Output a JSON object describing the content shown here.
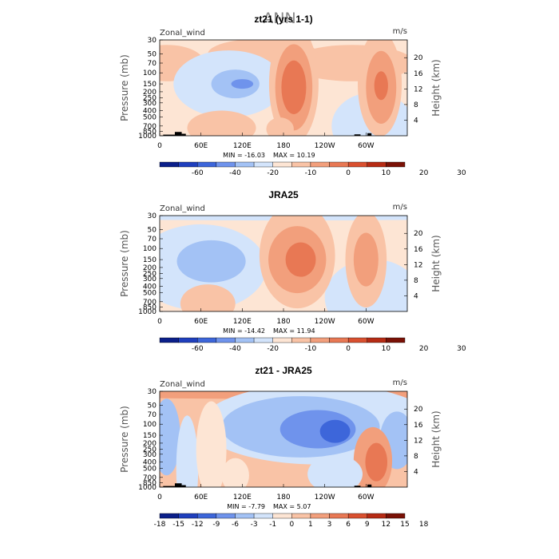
{
  "page_title": "ANN",
  "chart_data": [
    {
      "type": "heatmap",
      "title": "zt21 (yrs 1-1)",
      "left_label": "Zonal_wind",
      "units": "m/s",
      "ylabel": "Pressure (mb)",
      "y2label": "Height (km)",
      "x_ticks": [
        "0",
        "60E",
        "120E",
        "180",
        "120W",
        "60W"
      ],
      "x_tick_lon": [
        0,
        60,
        120,
        180,
        240,
        300
      ],
      "xlim": [
        0,
        360
      ],
      "y_ticks": [
        30,
        50,
        70,
        100,
        150,
        200,
        250,
        300,
        400,
        500,
        700,
        850,
        1000
      ],
      "ylim": [
        1000,
        30
      ],
      "y2_ticks": [
        4,
        8,
        12,
        16,
        20
      ],
      "min_label": "MIN = -16.03",
      "max_label": "MAX = 10.19",
      "colorbar_labels": [
        "-60",
        "-40",
        "-20",
        "-10",
        "0",
        "10",
        "20",
        "30"
      ],
      "colorbar_colors": [
        "#0b1f8a",
        "#1f3fbd",
        "#3d66da",
        "#6f93ec",
        "#a3c2f5",
        "#d3e4fb",
        "#fde5d4",
        "#f9c3a6",
        "#f29f7c",
        "#e87854",
        "#d9502f",
        "#b62b14",
        "#7a1106"
      ],
      "background_level": 6,
      "regions": [
        {
          "lon": 10,
          "p": 70,
          "rx": 55,
          "rp": 0.19,
          "level": 7
        },
        {
          "lon": 280,
          "p": 70,
          "rx": 90,
          "rp": 0.19,
          "level": 7
        },
        {
          "lon": 150,
          "p": 50,
          "rx": 80,
          "rp": 0.16,
          "level": 7
        },
        {
          "lon": 100,
          "p": 150,
          "rx": 80,
          "rp": 0.35,
          "level": 5
        },
        {
          "lon": 110,
          "p": 150,
          "rx": 35,
          "rp": 0.15,
          "level": 4
        },
        {
          "lon": 120,
          "p": 150,
          "rx": 16,
          "rp": 0.05,
          "level": 3
        },
        {
          "lon": 310,
          "p": 700,
          "rx": 60,
          "rp": 0.35,
          "level": 5
        },
        {
          "lon": 195,
          "p": 150,
          "rx": 36,
          "rp": 0.62,
          "level": 7
        },
        {
          "lon": 195,
          "p": 170,
          "rx": 27,
          "rp": 0.45,
          "level": 8
        },
        {
          "lon": 195,
          "p": 170,
          "rx": 18,
          "rp": 0.28,
          "level": 9
        },
        {
          "lon": 320,
          "p": 150,
          "rx": 32,
          "rp": 0.55,
          "level": 7
        },
        {
          "lon": 322,
          "p": 170,
          "rx": 22,
          "rp": 0.38,
          "level": 8
        },
        {
          "lon": 322,
          "p": 160,
          "rx": 10,
          "rp": 0.15,
          "level": 9
        },
        {
          "lon": 90,
          "p": 750,
          "rx": 50,
          "rp": 0.18,
          "level": 7
        },
        {
          "lon": 175,
          "p": 780,
          "rx": 20,
          "rp": 0.12,
          "level": 7
        }
      ],
      "terrain": [
        {
          "lon0": 5,
          "lon1": 22,
          "p": 960
        },
        {
          "lon0": 22,
          "lon1": 32,
          "p": 870
        },
        {
          "lon0": 32,
          "lon1": 38,
          "p": 930
        },
        {
          "lon0": 283,
          "lon1": 292,
          "p": 950
        },
        {
          "lon0": 302,
          "lon1": 308,
          "p": 910
        }
      ]
    },
    {
      "type": "heatmap",
      "title": "JRA25",
      "left_label": "Zonal_wind",
      "units": "m/s",
      "ylabel": "Pressure (mb)",
      "y2label": "Height (km)",
      "x_ticks": [
        "0",
        "60E",
        "120E",
        "180",
        "120W",
        "60W"
      ],
      "x_tick_lon": [
        0,
        60,
        120,
        180,
        240,
        300
      ],
      "xlim": [
        0,
        360
      ],
      "y_ticks": [
        30,
        50,
        70,
        100,
        150,
        200,
        250,
        300,
        400,
        500,
        700,
        850,
        1000
      ],
      "ylim": [
        1000,
        30
      ],
      "y2_ticks": [
        4,
        8,
        12,
        16,
        20
      ],
      "min_label": "MIN = -14.42",
      "max_label": "MAX = 11.94",
      "colorbar_labels": [
        "-60",
        "-40",
        "-20",
        "-10",
        "0",
        "10",
        "20",
        "30"
      ],
      "colorbar_colors": [
        "#0b1f8a",
        "#1f3fbd",
        "#3d66da",
        "#6f93ec",
        "#a3c2f5",
        "#d3e4fb",
        "#fde5d4",
        "#f9c3a6",
        "#f29f7c",
        "#e87854",
        "#d9502f",
        "#b62b14",
        "#7a1106"
      ],
      "background_level": 6,
      "regions": [
        {
          "lon": 180,
          "p": 30,
          "rx": 400,
          "rp": 0.05,
          "level": 5
        },
        {
          "lon": 60,
          "p": 200,
          "rx": 95,
          "rp": 0.45,
          "level": 5
        },
        {
          "lon": 75,
          "p": 160,
          "rx": 50,
          "rp": 0.22,
          "level": 4
        },
        {
          "lon": 310,
          "p": 600,
          "rx": 70,
          "rp": 0.4,
          "level": 5
        },
        {
          "lon": 200,
          "p": 130,
          "rx": 55,
          "rp": 0.55,
          "level": 7
        },
        {
          "lon": 200,
          "p": 150,
          "rx": 42,
          "rp": 0.35,
          "level": 8
        },
        {
          "lon": 205,
          "p": 150,
          "rx": 22,
          "rp": 0.18,
          "level": 9
        },
        {
          "lon": 300,
          "p": 150,
          "rx": 30,
          "rp": 0.5,
          "level": 7
        },
        {
          "lon": 300,
          "p": 150,
          "rx": 18,
          "rp": 0.28,
          "level": 8
        },
        {
          "lon": 70,
          "p": 750,
          "rx": 40,
          "rp": 0.2,
          "level": 7
        }
      ],
      "terrain": []
    },
    {
      "type": "heatmap",
      "title": "zt21 - JRA25",
      "left_label": "Zonal_wind",
      "units": "m/s",
      "ylabel": "Pressure (mb)",
      "y2label": "Height (km)",
      "x_ticks": [
        "0",
        "60E",
        "120E",
        "180",
        "120W",
        "60W"
      ],
      "x_tick_lon": [
        0,
        60,
        120,
        180,
        240,
        300
      ],
      "xlim": [
        0,
        360
      ],
      "y_ticks": [
        30,
        50,
        70,
        100,
        150,
        200,
        250,
        300,
        400,
        500,
        700,
        850,
        1000
      ],
      "ylim": [
        1000,
        30
      ],
      "y2_ticks": [
        4,
        8,
        12,
        16,
        20
      ],
      "min_label": "MIN = -7.79",
      "max_label": "MAX = 5.07",
      "colorbar_labels": [
        "-18",
        "-15",
        "-12",
        "-9",
        "-6",
        "-3",
        "-1",
        "0",
        "1",
        "3",
        "6",
        "9",
        "12",
        "15",
        "18"
      ],
      "colorbar_colors": [
        "#0b1f8a",
        "#1f3fbd",
        "#3d66da",
        "#6f93ec",
        "#a3c2f5",
        "#d3e4fb",
        "#fde5d4",
        "#f9c3a6",
        "#f29f7c",
        "#e87854",
        "#d9502f",
        "#b62b14",
        "#7a1106"
      ],
      "background_level": 7,
      "regions": [
        {
          "lon": 180,
          "p": 30,
          "rx": 400,
          "rp": 0.08,
          "level": 8
        },
        {
          "lon": 230,
          "p": 100,
          "rx": 170,
          "rp": 0.42,
          "level": 5
        },
        {
          "lon": 205,
          "p": 110,
          "rx": 115,
          "rp": 0.32,
          "level": 4
        },
        {
          "lon": 230,
          "p": 120,
          "rx": 55,
          "rp": 0.2,
          "level": 3
        },
        {
          "lon": 255,
          "p": 130,
          "rx": 22,
          "rp": 0.12,
          "level": 2
        },
        {
          "lon": 10,
          "p": 160,
          "rx": 20,
          "rp": 0.4,
          "level": 4
        },
        {
          "lon": 345,
          "p": 180,
          "rx": 25,
          "rp": 0.3,
          "level": 4
        },
        {
          "lon": 40,
          "p": 500,
          "rx": 16,
          "rp": 0.55,
          "level": 5
        },
        {
          "lon": 75,
          "p": 250,
          "rx": 22,
          "rp": 0.5,
          "level": 6
        },
        {
          "lon": 310,
          "p": 380,
          "rx": 28,
          "rp": 0.35,
          "level": 8
        },
        {
          "lon": 315,
          "p": 400,
          "rx": 16,
          "rp": 0.2,
          "level": 9
        },
        {
          "lon": 255,
          "p": 620,
          "rx": 40,
          "rp": 0.2,
          "level": 5
        },
        {
          "lon": 110,
          "p": 650,
          "rx": 20,
          "rp": 0.18,
          "level": 6
        }
      ],
      "terrain": [
        {
          "lon0": 5,
          "lon1": 22,
          "p": 960
        },
        {
          "lon0": 22,
          "lon1": 32,
          "p": 870
        },
        {
          "lon0": 32,
          "lon1": 38,
          "p": 930
        },
        {
          "lon0": 283,
          "lon1": 292,
          "p": 950
        },
        {
          "lon0": 302,
          "lon1": 308,
          "p": 910
        }
      ]
    }
  ]
}
